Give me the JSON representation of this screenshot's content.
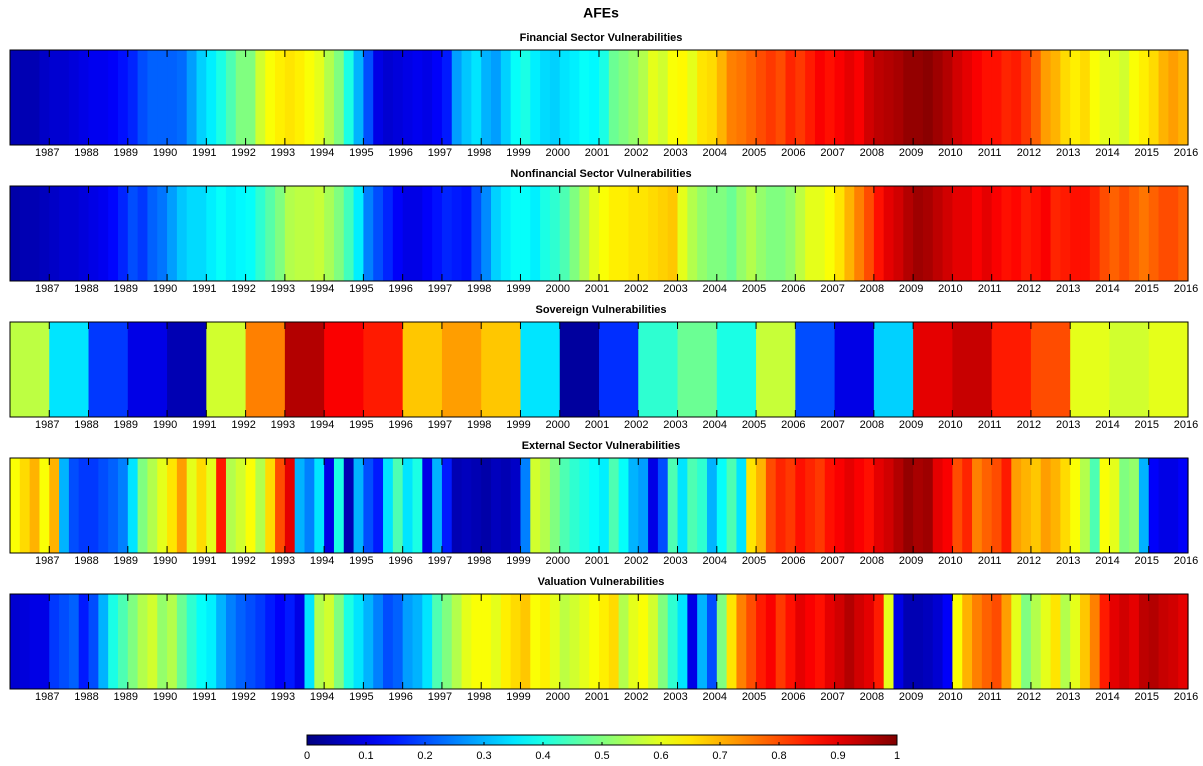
{
  "chart_data": {
    "type": "heatmap",
    "title": "AFEs",
    "colormap": "jet",
    "xlim": [
      1986,
      2016
    ],
    "xticks": [
      1987,
      1988,
      1989,
      1990,
      1991,
      1992,
      1993,
      1994,
      1995,
      1996,
      1997,
      1998,
      1999,
      2000,
      2001,
      2002,
      2003,
      2004,
      2005,
      2006,
      2007,
      2008,
      2009,
      2010,
      2011,
      2012,
      2013,
      2014,
      2015,
      2016
    ],
    "clim": [
      0,
      1
    ],
    "cticks": [
      0,
      0.1,
      0.2,
      0.3,
      0.4,
      0.5,
      0.6,
      0.7,
      0.8,
      0.9,
      1
    ],
    "panels": [
      {
        "title": "Financial Sector Vulnerabilities",
        "values": [
          0.05,
          0.05,
          0.05,
          0.07,
          0.08,
          0.08,
          0.09,
          0.1,
          0.11,
          0.11,
          0.12,
          0.14,
          0.16,
          0.2,
          0.22,
          0.22,
          0.22,
          0.23,
          0.28,
          0.33,
          0.36,
          0.4,
          0.45,
          0.5,
          0.5,
          0.58,
          0.62,
          0.64,
          0.65,
          0.64,
          0.62,
          0.6,
          0.55,
          0.5,
          0.4,
          0.3,
          0.2,
          0.1,
          0.08,
          0.09,
          0.1,
          0.11,
          0.1,
          0.12,
          0.15,
          0.28,
          0.32,
          0.35,
          0.3,
          0.28,
          0.33,
          0.38,
          0.4,
          0.36,
          0.34,
          0.33,
          0.35,
          0.36,
          0.38,
          0.37,
          0.4,
          0.48,
          0.5,
          0.52,
          0.55,
          0.6,
          0.58,
          0.62,
          0.63,
          0.6,
          0.65,
          0.66,
          0.7,
          0.75,
          0.76,
          0.78,
          0.8,
          0.82,
          0.8,
          0.84,
          0.82,
          0.85,
          0.88,
          0.86,
          0.88,
          0.9,
          0.88,
          0.92,
          0.94,
          0.95,
          0.96,
          0.98,
          0.98,
          0.99,
          0.97,
          0.95,
          0.92,
          0.9,
          0.88,
          0.86,
          0.86,
          0.84,
          0.85,
          0.82,
          0.78,
          0.72,
          0.7,
          0.66,
          0.64,
          0.66,
          0.62,
          0.6,
          0.6,
          0.58,
          0.62,
          0.64,
          0.66,
          0.7,
          0.72,
          0.7
        ]
      },
      {
        "title": "Nonfinancial Sector Vulnerabilities",
        "values": [
          0.04,
          0.05,
          0.05,
          0.06,
          0.07,
          0.08,
          0.08,
          0.09,
          0.1,
          0.11,
          0.13,
          0.16,
          0.2,
          0.18,
          0.22,
          0.24,
          0.28,
          0.32,
          0.34,
          0.34,
          0.36,
          0.38,
          0.36,
          0.37,
          0.38,
          0.42,
          0.46,
          0.5,
          0.55,
          0.56,
          0.56,
          0.57,
          0.54,
          0.5,
          0.44,
          0.36,
          0.25,
          0.2,
          0.16,
          0.12,
          0.1,
          0.1,
          0.12,
          0.14,
          0.16,
          0.15,
          0.14,
          0.2,
          0.26,
          0.33,
          0.36,
          0.38,
          0.38,
          0.36,
          0.4,
          0.42,
          0.45,
          0.5,
          0.55,
          0.6,
          0.62,
          0.64,
          0.64,
          0.65,
          0.65,
          0.66,
          0.67,
          0.68,
          0.6,
          0.55,
          0.52,
          0.5,
          0.5,
          0.48,
          0.52,
          0.55,
          0.52,
          0.5,
          0.5,
          0.52,
          0.56,
          0.6,
          0.6,
          0.62,
          0.65,
          0.7,
          0.75,
          0.8,
          0.86,
          0.9,
          0.92,
          0.95,
          0.97,
          0.96,
          0.94,
          0.92,
          0.9,
          0.9,
          0.88,
          0.9,
          0.88,
          0.86,
          0.87,
          0.85,
          0.86,
          0.88,
          0.84,
          0.85,
          0.86,
          0.86,
          0.84,
          0.8,
          0.78,
          0.8,
          0.78,
          0.76,
          0.78,
          0.8,
          0.8,
          0.78
        ]
      },
      {
        "title": "Sovereign Vulnerabilities",
        "values": [
          0.56,
          0.35,
          0.18,
          0.1,
          0.05,
          0.58,
          0.75,
          0.95,
          0.88,
          0.85,
          0.68,
          0.72,
          0.68,
          0.35,
          0.03,
          0.17,
          0.42,
          0.48,
          0.4,
          0.57,
          0.2,
          0.1,
          0.33,
          0.9,
          0.93,
          0.85,
          0.8,
          0.6,
          0.58,
          0.6
        ]
      },
      {
        "title": "External Sector Vulnerabilities",
        "values": [
          0.62,
          0.66,
          0.7,
          0.62,
          0.7,
          0.3,
          0.2,
          0.18,
          0.18,
          0.2,
          0.22,
          0.25,
          0.35,
          0.5,
          0.55,
          0.6,
          0.65,
          0.72,
          0.6,
          0.66,
          0.6,
          0.85,
          0.55,
          0.58,
          0.62,
          0.55,
          0.66,
          0.8,
          0.9,
          0.3,
          0.25,
          0.35,
          0.1,
          0.4,
          0.05,
          0.3,
          0.2,
          0.15,
          0.35,
          0.45,
          0.35,
          0.4,
          0.1,
          0.3,
          0.15,
          0.05,
          0.06,
          0.05,
          0.04,
          0.06,
          0.05,
          0.07,
          0.25,
          0.58,
          0.55,
          0.5,
          0.45,
          0.42,
          0.4,
          0.38,
          0.36,
          0.45,
          0.38,
          0.3,
          0.28,
          0.1,
          0.2,
          0.45,
          0.35,
          0.45,
          0.42,
          0.3,
          0.38,
          0.45,
          0.35,
          0.65,
          0.7,
          0.8,
          0.84,
          0.82,
          0.86,
          0.84,
          0.82,
          0.86,
          0.88,
          0.9,
          0.88,
          0.86,
          0.9,
          0.92,
          0.95,
          0.98,
          0.96,
          0.97,
          0.9,
          0.88,
          0.8,
          0.84,
          0.75,
          0.78,
          0.8,
          0.85,
          0.72,
          0.7,
          0.68,
          0.72,
          0.7,
          0.66,
          0.62,
          0.55,
          0.45,
          0.62,
          0.6,
          0.5,
          0.52,
          0.3,
          0.12,
          0.1,
          0.1,
          0.12
        ]
      },
      {
        "title": "Valuation Vulnerabilities",
        "values": [
          0.08,
          0.09,
          0.1,
          0.1,
          0.18,
          0.2,
          0.22,
          0.15,
          0.2,
          0.3,
          0.4,
          0.45,
          0.5,
          0.55,
          0.58,
          0.52,
          0.55,
          0.48,
          0.42,
          0.38,
          0.36,
          0.3,
          0.25,
          0.22,
          0.2,
          0.18,
          0.15,
          0.12,
          0.15,
          0.1,
          0.35,
          0.55,
          0.58,
          0.5,
          0.4,
          0.35,
          0.3,
          0.25,
          0.2,
          0.22,
          0.28,
          0.3,
          0.35,
          0.45,
          0.5,
          0.55,
          0.6,
          0.62,
          0.62,
          0.6,
          0.64,
          0.66,
          0.68,
          0.62,
          0.64,
          0.6,
          0.56,
          0.58,
          0.6,
          0.62,
          0.64,
          0.66,
          0.55,
          0.6,
          0.62,
          0.58,
          0.5,
          0.42,
          0.35,
          0.1,
          0.3,
          0.2,
          0.5,
          0.65,
          0.75,
          0.8,
          0.85,
          0.88,
          0.82,
          0.86,
          0.9,
          0.88,
          0.86,
          0.9,
          0.92,
          0.95,
          0.92,
          0.9,
          0.85,
          0.6,
          0.1,
          0.05,
          0.05,
          0.06,
          0.08,
          0.12,
          0.62,
          0.7,
          0.75,
          0.78,
          0.8,
          0.72,
          0.6,
          0.5,
          0.55,
          0.6,
          0.65,
          0.55,
          0.6,
          0.68,
          0.75,
          0.85,
          0.9,
          0.92,
          0.9,
          0.94,
          0.95,
          0.93,
          0.92,
          0.9
        ]
      }
    ]
  }
}
